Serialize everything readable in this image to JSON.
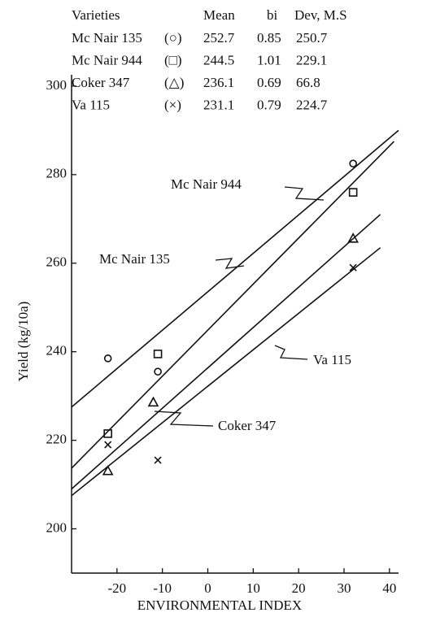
{
  "chart_data": {
    "type": "scatter",
    "x_label": "ENVIRONMENTAL INDEX",
    "y_label": "Yield (kg/10a)",
    "xlim": [
      -30,
      42
    ],
    "ylim": [
      190,
      302
    ],
    "xticks": [
      -20,
      -10,
      0,
      10,
      20,
      30,
      40
    ],
    "yticks": [
      200,
      220,
      240,
      260,
      280,
      300
    ],
    "legend_headers": [
      "Varieties",
      "Mean",
      "bi",
      "Dev, M.S"
    ],
    "series": [
      {
        "name": "Mc Nair 135",
        "symbol": "(○)",
        "marker": "circle",
        "mean": 252.7,
        "bi": 0.85,
        "dev": 250.7,
        "x": [
          -22,
          -11,
          32
        ],
        "values": [
          238.5,
          235.5,
          282.5
        ],
        "line_x": [
          -30,
          42
        ],
        "line_values": [
          227.5,
          290
        ]
      },
      {
        "name": "Mc Nair 944",
        "symbol": "(□)",
        "marker": "square",
        "mean": 244.5,
        "bi": 1.01,
        "dev": 229.1,
        "x": [
          -22,
          -11,
          32
        ],
        "values": [
          221.5,
          239.5,
          276
        ],
        "line_x": [
          -30,
          41
        ],
        "line_values": [
          213.7,
          287.5
        ]
      },
      {
        "name": "Coker 347",
        "symbol": "(△)",
        "marker": "triangle",
        "mean": 236.1,
        "bi": 0.69,
        "dev": 66.8,
        "x": [
          -22,
          -12,
          32
        ],
        "values": [
          213,
          228.5,
          265.5
        ],
        "line_x": [
          -30,
          38
        ],
        "line_values": [
          209,
          271
        ]
      },
      {
        "name": "Va 115",
        "symbol": "(×)",
        "marker": "cross",
        "mean": 231.1,
        "bi": 0.79,
        "dev": 224.7,
        "x": [
          -22,
          -11,
          32
        ],
        "values": [
          219,
          215.5,
          259
        ],
        "line_x": [
          -30,
          38
        ],
        "line_values": [
          207.5,
          263.5
        ]
      }
    ],
    "annotations": [
      "Mc Nair 944",
      "Mc Nair 135",
      "Va 115",
      "Coker 347"
    ]
  }
}
